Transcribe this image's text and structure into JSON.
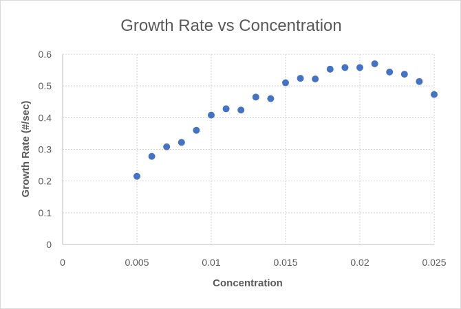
{
  "chart_data": {
    "type": "scatter",
    "title": "Growth Rate vs Concentration",
    "xlabel": "Concentration",
    "ylabel": "Growth Rate (#/sec)",
    "xlim": [
      0,
      0.025
    ],
    "ylim": [
      0,
      0.6
    ],
    "x_ticks": [
      "0",
      "0.005",
      "0.01",
      "0.015",
      "0.02",
      "0.025"
    ],
    "y_ticks": [
      "0",
      "0.1",
      "0.2",
      "0.3",
      "0.4",
      "0.5",
      "0.6"
    ],
    "grid": true,
    "legend": "none",
    "marker_color": "#4472c4",
    "series": [
      {
        "x": [
          0.005,
          0.006,
          0.007,
          0.008,
          0.009,
          0.01,
          0.011,
          0.012,
          0.013,
          0.014,
          0.015,
          0.016,
          0.017,
          0.018,
          0.019,
          0.02,
          0.021,
          0.022,
          0.023,
          0.024,
          0.025
        ],
        "y": [
          0.215,
          0.278,
          0.308,
          0.322,
          0.36,
          0.408,
          0.428,
          0.424,
          0.465,
          0.46,
          0.51,
          0.524,
          0.522,
          0.553,
          0.558,
          0.558,
          0.57,
          0.544,
          0.537,
          0.514,
          0.473
        ]
      }
    ]
  }
}
